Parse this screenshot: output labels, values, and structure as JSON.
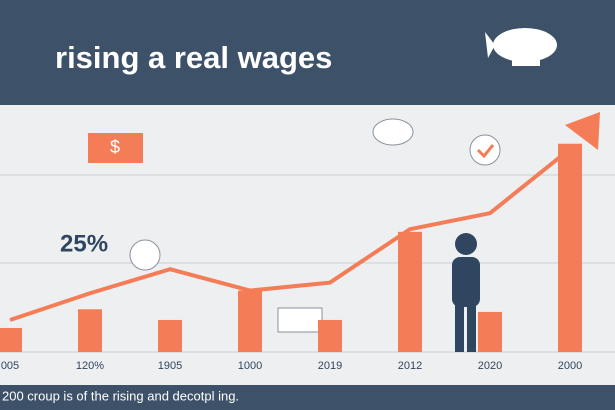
{
  "chart_data": {
    "type": "combo",
    "title": "rising a real wages",
    "annotations": [
      "25%",
      "$"
    ],
    "footer": "200 croup is of the rising and decotpl ing.",
    "categories": [
      "005",
      "120%",
      "1905",
      "1000",
      "2019",
      "2012",
      "2020",
      "2000"
    ],
    "series": [
      {
        "type": "bar",
        "color": "#f47c56",
        "values": [
          9,
          16,
          12,
          23,
          12,
          45,
          15,
          78
        ]
      },
      {
        "type": "line",
        "color": "#f47c56",
        "values": [
          12,
          22,
          31,
          23,
          26,
          46,
          52,
          76
        ]
      }
    ],
    "ylim": [
      0,
      100
    ]
  }
}
